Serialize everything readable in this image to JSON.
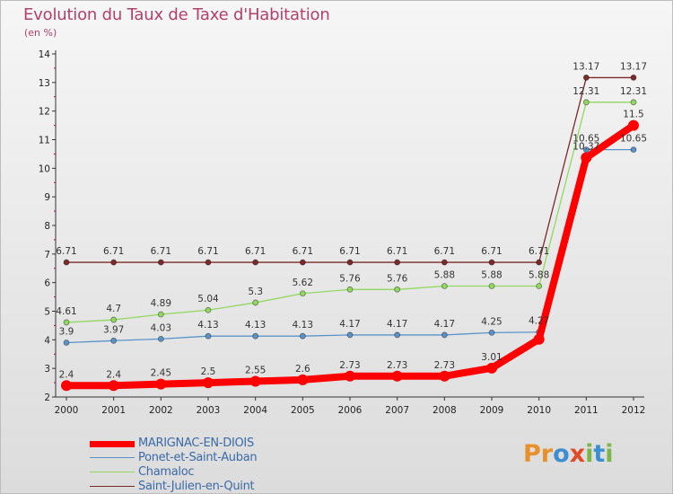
{
  "title": "Evolution du Taux de Taxe d'Habitation",
  "subtitle": "(en %)",
  "logo": {
    "letters": [
      "P",
      "r",
      "o",
      "x",
      "i",
      "t",
      "i"
    ],
    "colors": [
      "#e8912a",
      "#e8912a",
      "#3b8fd0",
      "#e04b2a",
      "#7ab648",
      "#3b8fd0",
      "#7ab648"
    ]
  },
  "chart_data": {
    "type": "line",
    "x": [
      "2000",
      "2001",
      "2002",
      "2003",
      "2004",
      "2005",
      "2006",
      "2007",
      "2008",
      "2009",
      "2010",
      "2011",
      "2012"
    ],
    "yticks": [
      "2",
      "3",
      "4",
      "5",
      "6",
      "7",
      "8",
      "9",
      "10",
      "11",
      "12",
      "13",
      "14"
    ],
    "ylim": [
      2,
      14
    ],
    "grid": false,
    "legend_position": "bottom-left",
    "series": [
      {
        "name": "Saint-Julien-en-Quint",
        "color": "#7b2a2a",
        "values": [
          6.71,
          6.71,
          6.71,
          6.71,
          6.71,
          6.71,
          6.71,
          6.71,
          6.71,
          6.71,
          6.71,
          13.17,
          13.17
        ],
        "labels": [
          "6.71",
          "6.71",
          "6.71",
          "6.71",
          "6.71",
          "6.71",
          "6.71",
          "6.71",
          "6.71",
          "6.71",
          "6.71",
          "13.17",
          "13.17"
        ]
      },
      {
        "name": "Chamaloc",
        "color": "#90d860",
        "values": [
          4.61,
          4.7,
          4.89,
          5.04,
          5.3,
          5.62,
          5.76,
          5.76,
          5.88,
          5.88,
          5.88,
          12.31,
          12.31
        ],
        "labels": [
          "4.61",
          "4.7",
          "4.89",
          "5.04",
          "5.3",
          "5.62",
          "5.76",
          "5.76",
          "5.88",
          "5.88",
          "5.88",
          "12.31",
          "12.31"
        ]
      },
      {
        "name": "Ponet-et-Saint-Auban",
        "color": "#5b93c7",
        "values": [
          3.9,
          3.97,
          4.03,
          4.13,
          4.13,
          4.13,
          4.17,
          4.17,
          4.17,
          4.25,
          4.27,
          10.65,
          10.65
        ],
        "labels": [
          "3.9",
          "3.97",
          "4.03",
          "4.13",
          "4.13",
          "4.13",
          "4.17",
          "4.17",
          "4.17",
          "4.25",
          "4.27",
          "10.65",
          "10.65"
        ]
      },
      {
        "name": "MARIGNAC-EN-DIOIS",
        "color": "#ff0000",
        "values": [
          2.4,
          2.4,
          2.45,
          2.5,
          2.55,
          2.6,
          2.73,
          2.73,
          2.73,
          3.01,
          4.02,
          10.37,
          11.5
        ],
        "labels": [
          "2.4",
          "2.4",
          "2.45",
          "2.5",
          "2.55",
          "2.6",
          "2.73",
          "2.73",
          "2.73",
          "3.01",
          "",
          "10.37",
          "11.5"
        ]
      }
    ]
  }
}
